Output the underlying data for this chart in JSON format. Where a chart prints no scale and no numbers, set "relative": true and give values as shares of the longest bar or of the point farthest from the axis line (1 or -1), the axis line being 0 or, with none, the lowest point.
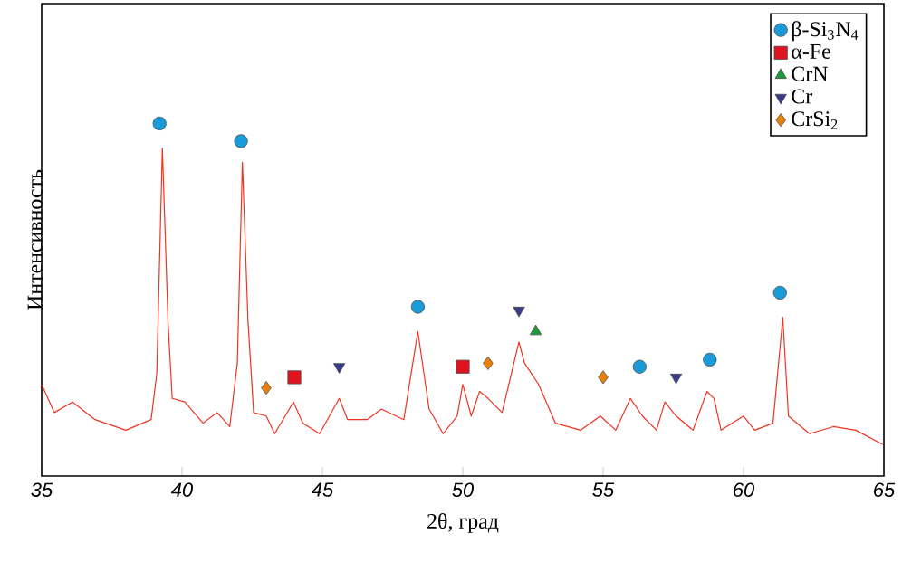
{
  "chart_data": {
    "type": "line",
    "xlabel": "2θ, град",
    "ylabel": "Интенсивность",
    "relative": true,
    "xlim": [
      35,
      65
    ],
    "xticks": [
      35,
      40,
      45,
      50,
      55,
      60,
      65
    ],
    "legend": "top right",
    "grid": false,
    "series": [
      {
        "color": "#ee3322",
        "marker": "none",
        "x": [
          35.0,
          35.45,
          36.1,
          36.9,
          38.0,
          38.9,
          39.1,
          39.3,
          39.5,
          39.65,
          40.1,
          40.75,
          41.25,
          41.7,
          41.97,
          42.15,
          42.35,
          42.55,
          43.0,
          43.3,
          43.97,
          44.3,
          44.9,
          45.6,
          45.9,
          46.6,
          47.1,
          47.9,
          48.4,
          48.8,
          49.3,
          49.8,
          50.0,
          50.3,
          50.6,
          50.9,
          51.4,
          52.0,
          52.2,
          52.7,
          53.3,
          54.2,
          54.9,
          55.45,
          55.97,
          56.4,
          56.9,
          57.2,
          57.6,
          58.2,
          58.7,
          58.95,
          59.2,
          60.0,
          60.4,
          61.05,
          61.4,
          61.6,
          62.35,
          63.2,
          64.0,
          64.95
        ],
        "values": [
          0.26,
          0.18,
          0.21,
          0.16,
          0.13,
          0.16,
          0.29,
          0.93,
          0.44,
          0.22,
          0.21,
          0.15,
          0.18,
          0.14,
          0.32,
          0.89,
          0.44,
          0.18,
          0.17,
          0.12,
          0.21,
          0.15,
          0.12,
          0.22,
          0.16,
          0.16,
          0.19,
          0.16,
          0.41,
          0.19,
          0.12,
          0.17,
          0.26,
          0.17,
          0.24,
          0.22,
          0.18,
          0.38,
          0.32,
          0.26,
          0.15,
          0.13,
          0.17,
          0.13,
          0.22,
          0.17,
          0.13,
          0.21,
          0.17,
          0.13,
          0.24,
          0.22,
          0.13,
          0.17,
          0.13,
          0.15,
          0.45,
          0.17,
          0.12,
          0.14,
          0.13,
          0.09
        ]
      },
      {
        "type": "scatter",
        "name": "β-Si$_{3}$N$_{4}$",
        "color": "#1a9ad6",
        "marker": "circle",
        "x": [
          39.2,
          42.1,
          48.4,
          56.3,
          58.8,
          61.3
        ],
        "values": [
          1.0,
          0.95,
          0.48,
          0.31,
          0.33,
          0.52
        ]
      },
      {
        "type": "scatter",
        "name": "α-Fe",
        "color": "#e0141e",
        "marker": "square",
        "x": [
          44.0,
          50.0
        ],
        "values": [
          0.28,
          0.31
        ]
      },
      {
        "type": "scatter",
        "name": "CrN",
        "color": "#1a9a3a",
        "marker": "triangle",
        "x": [
          52.6
        ],
        "values": [
          0.41
        ]
      },
      {
        "type": "scatter",
        "name": "Cr",
        "color": "#3a3a8a",
        "marker": "triangle-down",
        "x": [
          45.6,
          52.0,
          57.6
        ],
        "values": [
          0.31,
          0.47,
          0.28
        ]
      },
      {
        "type": "scatter",
        "name": "CrSi$_{2}$",
        "color": "#e8800a",
        "marker": "diamond",
        "x": [
          43.0,
          50.9,
          55.0
        ],
        "values": [
          0.25,
          0.32,
          0.28
        ]
      }
    ]
  }
}
